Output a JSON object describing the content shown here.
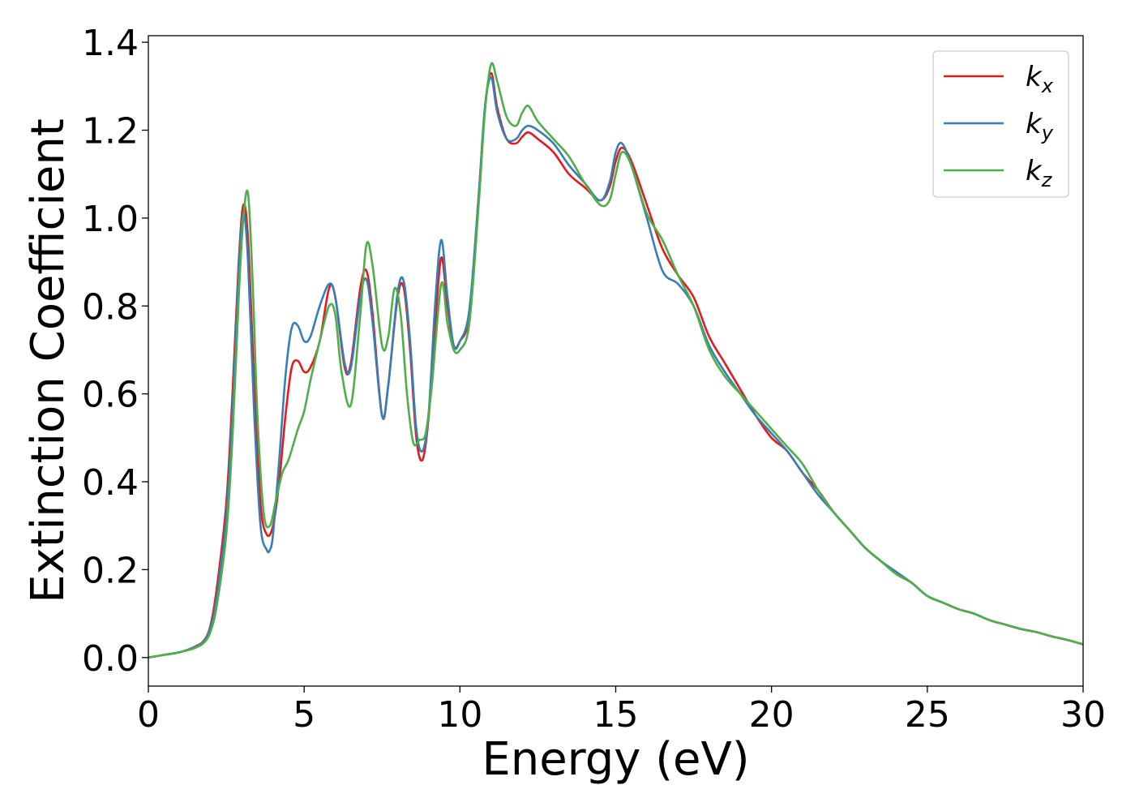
{
  "chart_data": {
    "type": "line",
    "xlabel": "Energy (eV)",
    "ylabel": "Extinction Coefficient",
    "xlim": [
      0,
      30
    ],
    "ylim": [
      -0.065,
      1.415
    ],
    "xticks": [
      0,
      5,
      10,
      15,
      20,
      25,
      30
    ],
    "xtick_labels": [
      "0",
      "5",
      "10",
      "15",
      "20",
      "25",
      "30"
    ],
    "yticks": [
      0.0,
      0.2,
      0.4,
      0.6,
      0.8,
      1.0,
      1.2,
      1.4
    ],
    "ytick_labels": [
      "0.0",
      "0.2",
      "0.4",
      "0.6",
      "0.8",
      "1.0",
      "1.2",
      "1.4"
    ],
    "grid": false,
    "legend_position": "top-right",
    "series": [
      {
        "name": "k_x",
        "label_main": "k",
        "label_sub": "x",
        "color": "#e41a1c",
        "x": [
          0,
          0.5,
          1.0,
          1.5,
          1.8,
          2.0,
          2.2,
          2.5,
          2.7,
          2.9,
          3.05,
          3.2,
          3.4,
          3.6,
          3.8,
          4.0,
          4.2,
          4.4,
          4.6,
          4.8,
          5.0,
          5.2,
          5.5,
          5.8,
          6.0,
          6.3,
          6.5,
          6.8,
          7.0,
          7.2,
          7.5,
          7.7,
          8.0,
          8.2,
          8.4,
          8.6,
          8.8,
          9.0,
          9.2,
          9.4,
          9.6,
          9.8,
          10.0,
          10.3,
          10.6,
          10.8,
          11.0,
          11.2,
          11.5,
          11.8,
          12.0,
          12.2,
          12.5,
          13.0,
          13.5,
          14.0,
          14.5,
          14.8,
          15.0,
          15.2,
          15.5,
          16.0,
          16.5,
          17.0,
          17.5,
          18.0,
          18.5,
          19.0,
          19.5,
          20.0,
          20.5,
          21.0,
          21.5,
          22.0,
          22.5,
          23.0,
          23.5,
          24.0,
          24.5,
          25.0,
          25.5,
          26.0,
          26.5,
          27.0,
          27.5,
          28.0,
          28.5,
          29.0,
          29.5,
          30.0
        ],
        "y": [
          0.0,
          0.006,
          0.012,
          0.025,
          0.04,
          0.075,
          0.16,
          0.35,
          0.6,
          0.9,
          1.03,
          0.95,
          0.62,
          0.35,
          0.28,
          0.3,
          0.4,
          0.55,
          0.66,
          0.675,
          0.65,
          0.66,
          0.72,
          0.84,
          0.82,
          0.66,
          0.67,
          0.84,
          0.88,
          0.78,
          0.55,
          0.62,
          0.82,
          0.84,
          0.7,
          0.5,
          0.45,
          0.55,
          0.75,
          0.91,
          0.8,
          0.71,
          0.72,
          0.78,
          1.05,
          1.25,
          1.33,
          1.25,
          1.18,
          1.17,
          1.185,
          1.195,
          1.18,
          1.15,
          1.1,
          1.07,
          1.04,
          1.07,
          1.13,
          1.16,
          1.13,
          1.03,
          0.93,
          0.87,
          0.82,
          0.73,
          0.67,
          0.61,
          0.55,
          0.5,
          0.47,
          0.42,
          0.38,
          0.33,
          0.29,
          0.25,
          0.22,
          0.19,
          0.17,
          0.14,
          0.125,
          0.11,
          0.1,
          0.085,
          0.075,
          0.065,
          0.058,
          0.048,
          0.04,
          0.03
        ]
      },
      {
        "name": "k_y",
        "label_main": "k",
        "label_sub": "y",
        "color": "#377eb8",
        "x": [
          0,
          0.5,
          1.0,
          1.5,
          1.8,
          2.0,
          2.2,
          2.5,
          2.7,
          2.9,
          3.05,
          3.2,
          3.4,
          3.6,
          3.8,
          3.9,
          4.0,
          4.2,
          4.4,
          4.6,
          4.8,
          5.0,
          5.2,
          5.5,
          5.8,
          6.0,
          6.3,
          6.5,
          6.8,
          7.0,
          7.2,
          7.5,
          7.7,
          8.0,
          8.2,
          8.4,
          8.6,
          8.8,
          9.0,
          9.2,
          9.4,
          9.6,
          9.8,
          10.0,
          10.3,
          10.6,
          10.8,
          11.0,
          11.2,
          11.5,
          11.8,
          12.0,
          12.2,
          12.5,
          13.0,
          13.5,
          14.0,
          14.5,
          14.8,
          15.0,
          15.2,
          15.5,
          16.0,
          16.5,
          17.0,
          17.5,
          18.0,
          18.5,
          19.0,
          19.5,
          20.0,
          20.5,
          21.0,
          21.5,
          22.0,
          22.5,
          23.0,
          23.5,
          24.0,
          24.5,
          25.0,
          25.5,
          26.0,
          26.5,
          27.0,
          27.5,
          28.0,
          28.5,
          29.0,
          29.5,
          30.0
        ],
        "y": [
          0.0,
          0.006,
          0.012,
          0.024,
          0.038,
          0.07,
          0.14,
          0.32,
          0.56,
          0.88,
          1.01,
          0.9,
          0.55,
          0.3,
          0.245,
          0.245,
          0.28,
          0.45,
          0.64,
          0.75,
          0.755,
          0.72,
          0.73,
          0.8,
          0.85,
          0.82,
          0.67,
          0.66,
          0.82,
          0.86,
          0.76,
          0.55,
          0.62,
          0.83,
          0.855,
          0.72,
          0.52,
          0.47,
          0.56,
          0.8,
          0.95,
          0.82,
          0.71,
          0.72,
          0.79,
          1.05,
          1.25,
          1.32,
          1.24,
          1.18,
          1.18,
          1.2,
          1.21,
          1.2,
          1.17,
          1.12,
          1.08,
          1.04,
          1.08,
          1.15,
          1.17,
          1.12,
          1.0,
          0.88,
          0.85,
          0.8,
          0.71,
          0.65,
          0.6,
          0.55,
          0.51,
          0.47,
          0.42,
          0.37,
          0.33,
          0.29,
          0.25,
          0.22,
          0.195,
          0.17,
          0.14,
          0.125,
          0.11,
          0.1,
          0.085,
          0.075,
          0.065,
          0.058,
          0.048,
          0.04,
          0.03
        ]
      },
      {
        "name": "k_z",
        "label_main": "k",
        "label_sub": "z",
        "color": "#4daf4a",
        "x": [
          0,
          0.5,
          1.0,
          1.5,
          1.8,
          2.0,
          2.2,
          2.5,
          2.7,
          2.9,
          3.05,
          3.2,
          3.35,
          3.5,
          3.7,
          3.9,
          4.1,
          4.3,
          4.5,
          4.8,
          5.0,
          5.2,
          5.5,
          5.8,
          6.0,
          6.2,
          6.5,
          6.8,
          7.0,
          7.2,
          7.5,
          7.7,
          7.9,
          8.1,
          8.3,
          8.5,
          8.7,
          8.9,
          9.1,
          9.4,
          9.6,
          9.8,
          10.0,
          10.3,
          10.6,
          10.8,
          11.0,
          11.2,
          11.5,
          11.8,
          12.0,
          12.2,
          12.5,
          13.0,
          13.5,
          14.0,
          14.5,
          14.8,
          15.0,
          15.2,
          15.5,
          16.0,
          16.5,
          17.0,
          17.5,
          18.0,
          18.5,
          19.0,
          19.5,
          20.0,
          20.5,
          21.0,
          21.5,
          22.0,
          22.5,
          23.0,
          23.5,
          24.0,
          24.5,
          25.0,
          25.5,
          26.0,
          26.5,
          27.0,
          27.5,
          28.0,
          28.5,
          29.0,
          29.5,
          30.0
        ],
        "y": [
          0.0,
          0.006,
          0.012,
          0.022,
          0.035,
          0.06,
          0.12,
          0.28,
          0.5,
          0.82,
          1.0,
          1.055,
          0.85,
          0.55,
          0.33,
          0.3,
          0.36,
          0.42,
          0.45,
          0.52,
          0.56,
          0.63,
          0.72,
          0.8,
          0.78,
          0.65,
          0.575,
          0.78,
          0.94,
          0.89,
          0.71,
          0.73,
          0.84,
          0.78,
          0.6,
          0.49,
          0.495,
          0.51,
          0.62,
          0.85,
          0.76,
          0.7,
          0.7,
          0.76,
          1.03,
          1.24,
          1.35,
          1.31,
          1.23,
          1.21,
          1.24,
          1.255,
          1.22,
          1.18,
          1.14,
          1.08,
          1.03,
          1.04,
          1.1,
          1.15,
          1.12,
          1.01,
          0.95,
          0.87,
          0.8,
          0.7,
          0.64,
          0.6,
          0.56,
          0.52,
          0.48,
          0.44,
          0.38,
          0.33,
          0.29,
          0.25,
          0.22,
          0.19,
          0.17,
          0.14,
          0.125,
          0.11,
          0.1,
          0.085,
          0.075,
          0.065,
          0.058,
          0.048,
          0.04,
          0.03
        ]
      }
    ]
  }
}
